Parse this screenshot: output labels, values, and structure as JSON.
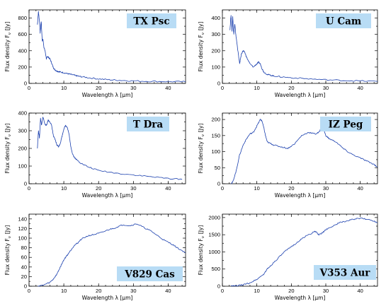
{
  "chart_data": [
    {
      "type": "line",
      "star": "TX Psc",
      "xlabel": "Wavelength λ  [μm]",
      "ylabel": "Flux density F",
      "ylabel_sub": "ν",
      "ylabel_unit": "[Jy]",
      "xlim": [
        0,
        45
      ],
      "ylim": [
        0,
        900
      ],
      "xticks": [
        0,
        10,
        20,
        30,
        40
      ],
      "yticks": [
        0,
        200,
        400,
        600,
        800
      ],
      "label_pos": "top-right",
      "series": [
        {
          "x": [
            2.4,
            2.7,
            3.0,
            3.2,
            3.5,
            3.8,
            4.0,
            4.3,
            4.6,
            5.0,
            5.3,
            5.6,
            6.0,
            6.5,
            7.0,
            7.5,
            8.0,
            8.5,
            9.0,
            10,
            11,
            12,
            13,
            14,
            15,
            17,
            20,
            23,
            26,
            30,
            35,
            40,
            45
          ],
          "y": [
            720,
            880,
            760,
            620,
            760,
            520,
            540,
            440,
            400,
            300,
            330,
            320,
            300,
            250,
            190,
            165,
            150,
            145,
            140,
            130,
            120,
            110,
            100,
            90,
            82,
            70,
            55,
            45,
            38,
            30,
            25,
            22,
            20
          ]
        }
      ]
    },
    {
      "type": "line",
      "star": "U Cam",
      "xlabel": "Wavelength λ  [μm]",
      "ylabel": "Flux density F",
      "ylabel_sub": "ν",
      "ylabel_unit": "[Jy]",
      "xlim": [
        0,
        45
      ],
      "ylim": [
        0,
        450
      ],
      "xticks": [
        0,
        10,
        20,
        30,
        40
      ],
      "yticks": [
        0,
        100,
        200,
        300,
        400
      ],
      "label_pos": "top-right",
      "series": [
        {
          "x": [
            2.2,
            2.5,
            2.8,
            3.0,
            3.3,
            3.6,
            4.0,
            4.5,
            5.0,
            5.5,
            6.0,
            6.5,
            7.0,
            8.0,
            9.0,
            10,
            10.5,
            11,
            11.5,
            12,
            13,
            14,
            15,
            17,
            20,
            25,
            30,
            35,
            40,
            45
          ],
          "y": [
            330,
            420,
            320,
            410,
            300,
            360,
            280,
            200,
            120,
            180,
            200,
            190,
            160,
            120,
            100,
            120,
            130,
            120,
            90,
            70,
            55,
            50,
            45,
            40,
            35,
            28,
            22,
            18,
            15,
            12
          ]
        }
      ]
    },
    {
      "type": "line",
      "star": "T Dra",
      "xlabel": "Wavelength λ  [μm]",
      "ylabel": "Flux density F",
      "ylabel_sub": "ν",
      "ylabel_unit": "[Jy]",
      "xlim": [
        0,
        45
      ],
      "ylim": [
        0,
        400
      ],
      "xticks": [
        0,
        10,
        20,
        30,
        40
      ],
      "yticks": [
        0,
        100,
        200,
        300,
        400
      ],
      "label_pos": "top-right",
      "series": [
        {
          "x": [
            2.4,
            2.7,
            3.0,
            3.3,
            3.6,
            4.0,
            4.5,
            5.0,
            5.5,
            6.0,
            6.5,
            7.0,
            7.5,
            8.0,
            8.5,
            9.0,
            9.5,
            10,
            10.5,
            11,
            11.5,
            12,
            12.5,
            13,
            14,
            15,
            17,
            20,
            25,
            30,
            35,
            40,
            44
          ],
          "y": [
            200,
            300,
            260,
            370,
            330,
            380,
            340,
            330,
            360,
            350,
            330,
            270,
            250,
            220,
            210,
            230,
            270,
            310,
            330,
            320,
            280,
            210,
            170,
            150,
            130,
            115,
            95,
            75,
            60,
            50,
            40,
            30,
            25
          ]
        }
      ]
    },
    {
      "type": "line",
      "star": "IZ Peg",
      "xlabel": "Wavelength λ  [μm]",
      "ylabel": "Flux density F",
      "ylabel_sub": "ν",
      "ylabel_unit": "[Jy]",
      "xlim": [
        0,
        45
      ],
      "ylim": [
        0,
        220
      ],
      "xticks": [
        0,
        10,
        20,
        30,
        40
      ],
      "yticks": [
        0,
        50,
        100,
        150,
        200
      ],
      "label_pos": "top-right",
      "series": [
        {
          "x": [
            2.5,
            3.0,
            4.0,
            5.0,
            6.0,
            7.0,
            8.0,
            9.0,
            10,
            11,
            11.5,
            12,
            12.5,
            13,
            14,
            15,
            17,
            19,
            21,
            23,
            25,
            27,
            28,
            29,
            29.5,
            30,
            31,
            33,
            35,
            37,
            40,
            42,
            44,
            45
          ],
          "y": [
            0,
            5,
            40,
            90,
            120,
            140,
            155,
            160,
            180,
            200,
            195,
            175,
            150,
            130,
            125,
            120,
            115,
            110,
            125,
            150,
            160,
            155,
            160,
            180,
            165,
            150,
            140,
            130,
            110,
            95,
            80,
            70,
            60,
            52
          ]
        }
      ]
    },
    {
      "type": "line",
      "star": "V829 Cas",
      "xlabel": "Wavelength λ  [μm]",
      "ylabel": "Flux density F",
      "ylabel_sub": "ν",
      "ylabel_unit": "[Jy]",
      "xlim": [
        0,
        45
      ],
      "ylim": [
        0,
        150
      ],
      "xticks": [
        0,
        10,
        20,
        30,
        40
      ],
      "yticks": [
        0,
        20,
        40,
        60,
        80,
        100,
        120,
        140
      ],
      "label_pos": "bottom-right",
      "series": [
        {
          "x": [
            2.5,
            4.0,
            6.0,
            7.0,
            8.0,
            9.0,
            10,
            11,
            12,
            13,
            14,
            15,
            17,
            19,
            21,
            23,
            25,
            27,
            29,
            31,
            33,
            35,
            37,
            39,
            41,
            43,
            45
          ],
          "y": [
            0,
            2,
            8,
            15,
            25,
            40,
            55,
            65,
            75,
            85,
            90,
            98,
            105,
            108,
            112,
            118,
            122,
            128,
            126,
            130,
            122,
            115,
            105,
            95,
            88,
            78,
            70
          ]
        }
      ]
    },
    {
      "type": "line",
      "star": "V353 Aur",
      "xlabel": "Wavelength λ  [μm]",
      "ylabel": "Flux density F",
      "ylabel_sub": "ν",
      "ylabel_unit": "[Jy]",
      "xlim": [
        0,
        45
      ],
      "ylim": [
        0,
        2100
      ],
      "xticks": [
        0,
        10,
        20,
        30,
        40
      ],
      "yticks": [
        0,
        500,
        1000,
        1500,
        2000
      ],
      "label_pos": "bottom-right",
      "series": [
        {
          "x": [
            2.5,
            4,
            6,
            8,
            10,
            12,
            13,
            14,
            16,
            18,
            20,
            22,
            24,
            26,
            27,
            28,
            29,
            30,
            32,
            34,
            36,
            38,
            40,
            42,
            44,
            45
          ],
          "y": [
            0,
            10,
            40,
            100,
            200,
            350,
            500,
            600,
            800,
            1000,
            1150,
            1300,
            1450,
            1550,
            1600,
            1500,
            1550,
            1650,
            1750,
            1850,
            1900,
            1950,
            1980,
            1950,
            1900,
            1850
          ]
        }
      ]
    }
  ]
}
